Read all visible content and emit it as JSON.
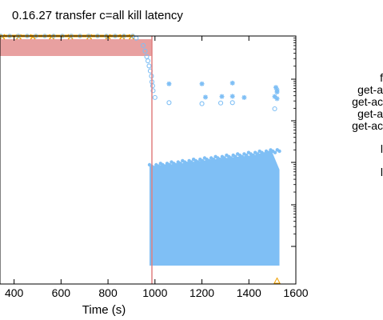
{
  "chart_data": {
    "type": "scatter",
    "title": "0.16.27 transfer c=all kill latency",
    "xlabel": "Time (s)",
    "x_ticks": [
      "400",
      "600",
      "800",
      "1000",
      "1200",
      "1400",
      "1600"
    ],
    "xlim": [
      340,
      1600
    ],
    "y_scale": "log",
    "grid": false,
    "legend_placement": "right, outside plot (partially cropped)",
    "legend_fragments": [
      "f",
      "get-a",
      "get-ac",
      "get-a",
      "get-ac",
      "l",
      "l"
    ],
    "kill_line_x": 987,
    "kill_shade": {
      "x_start": 340,
      "x_end": 987,
      "color": "#e8a0a0"
    },
    "colors": {
      "primary_series": "#7fbff5",
      "secondary_series": "#f0a000",
      "kill_line": "#e08080"
    },
    "series": [
      {
        "marker": "circle",
        "color": "#7fbff5",
        "points": [
          [
            920,
            0.35
          ],
          [
            950,
            0.8
          ],
          [
            958,
            1.5
          ],
          [
            965,
            2.8
          ],
          [
            970,
            4.5
          ],
          [
            975,
            8
          ],
          [
            980,
            14
          ],
          [
            985,
            25
          ],
          [
            987,
            48
          ],
          [
            990,
            75
          ],
          [
            992,
            130
          ],
          [
            1000,
            280
          ],
          [
            1060,
            500
          ],
          [
            1200,
            560
          ],
          [
            1280,
            520
          ],
          [
            1330,
            500
          ],
          [
            1510,
            1000
          ]
        ]
      },
      {
        "marker": "star",
        "color": "#7fbff5",
        "points": [
          [
            1060,
            60
          ],
          [
            1200,
            60
          ],
          [
            1330,
            55
          ],
          [
            1515,
            90
          ],
          [
            1520,
            120
          ],
          [
            1520,
            150
          ],
          [
            1215,
            270
          ],
          [
            1285,
            250
          ],
          [
            1330,
            245
          ],
          [
            1510,
            250
          ],
          [
            1380,
            280
          ],
          [
            1520,
            320
          ]
        ]
      },
      {
        "marker": "cross",
        "color": "#f0a000",
        "points": [
          [
            350,
            0.01
          ],
          [
            420,
            0.01
          ],
          [
            480,
            0.01
          ],
          [
            560,
            0.01
          ],
          [
            640,
            0.01
          ],
          [
            720,
            0.01
          ],
          [
            800,
            0.01
          ],
          [
            860,
            0.01
          ],
          [
            900,
            0.01
          ]
        ]
      },
      {
        "marker": "triangle",
        "color": "#f0a000",
        "points": [
          [
            1520,
            1500
          ]
        ]
      }
    ],
    "dense_region": {
      "x_start": 987,
      "x_end": 1520,
      "y_low": 400,
      "y_high": 1200,
      "color": "#7fbff5"
    }
  }
}
